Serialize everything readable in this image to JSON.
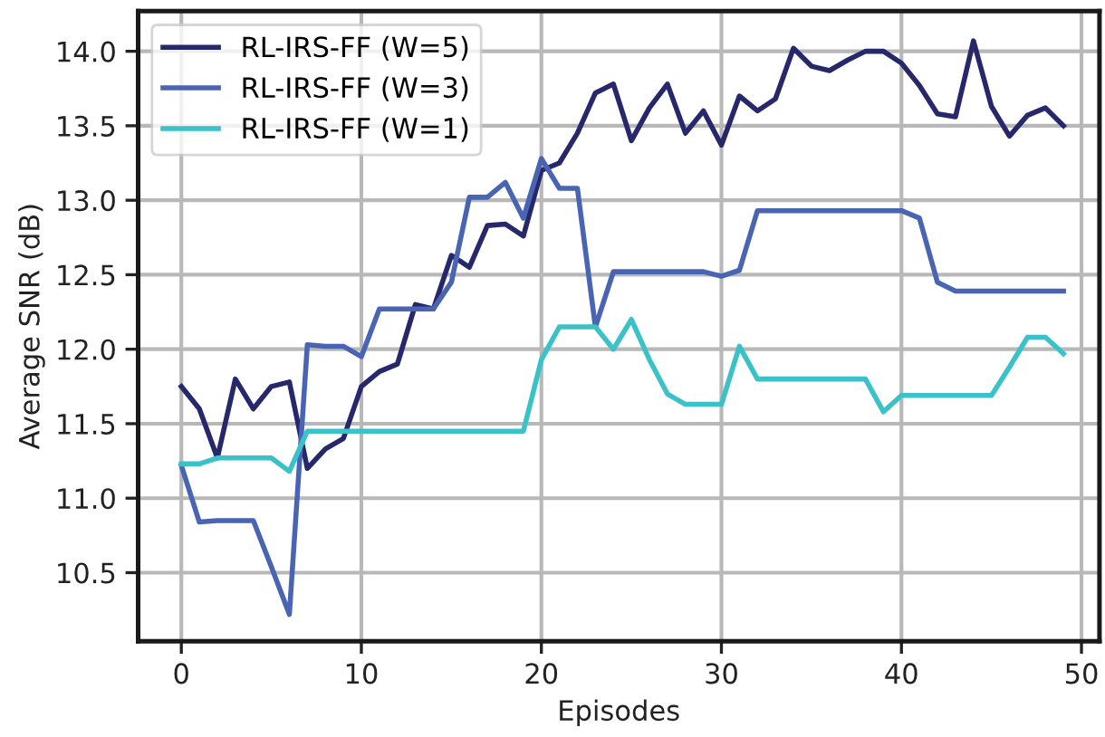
{
  "chart_data": {
    "type": "line",
    "xlabel": "Episodes",
    "ylabel": "Average SNR (dB)",
    "x": [
      0,
      1,
      2,
      3,
      4,
      5,
      6,
      7,
      8,
      9,
      10,
      11,
      12,
      13,
      14,
      15,
      16,
      17,
      18,
      19,
      20,
      21,
      22,
      23,
      24,
      25,
      26,
      27,
      28,
      29,
      30,
      31,
      32,
      33,
      34,
      35,
      36,
      37,
      38,
      39,
      40,
      41,
      42,
      43,
      44,
      45,
      46,
      47,
      48,
      49
    ],
    "series": [
      {
        "name": "RL-IRS-FF (W=5)",
        "color": "#27286b",
        "values": [
          11.75,
          11.6,
          11.27,
          11.8,
          11.6,
          11.75,
          11.78,
          11.2,
          11.33,
          11.4,
          11.75,
          11.85,
          11.9,
          12.3,
          12.27,
          12.63,
          12.55,
          12.83,
          12.84,
          12.76,
          13.2,
          13.25,
          13.45,
          13.72,
          13.78,
          13.4,
          13.62,
          13.78,
          13.45,
          13.6,
          13.37,
          13.7,
          13.6,
          13.68,
          14.02,
          13.9,
          13.87,
          13.94,
          14.0,
          14.0,
          13.92,
          13.77,
          13.58,
          13.56,
          14.07,
          13.63,
          13.43,
          13.57,
          13.62,
          13.5
        ]
      },
      {
        "name": "RL-IRS-FF (W=3)",
        "color": "#4a64b4",
        "values": [
          11.22,
          10.84,
          10.85,
          10.85,
          10.85,
          10.54,
          10.22,
          12.03,
          12.02,
          12.02,
          11.95,
          12.27,
          12.27,
          12.27,
          12.27,
          12.45,
          13.02,
          13.02,
          13.12,
          12.88,
          13.28,
          13.08,
          13.08,
          12.15,
          12.52,
          12.52,
          12.52,
          12.52,
          12.52,
          12.52,
          12.49,
          12.53,
          12.93,
          12.93,
          12.93,
          12.93,
          12.93,
          12.93,
          12.93,
          12.93,
          12.93,
          12.88,
          12.45,
          12.39,
          12.39,
          12.39,
          12.39,
          12.39,
          12.39,
          12.39
        ]
      },
      {
        "name": "RL-IRS-FF (W=1)",
        "color": "#3bc2c8",
        "values": [
          11.23,
          11.23,
          11.27,
          11.27,
          11.27,
          11.27,
          11.18,
          11.45,
          11.45,
          11.45,
          11.45,
          11.45,
          11.45,
          11.45,
          11.45,
          11.45,
          11.45,
          11.45,
          11.45,
          11.45,
          11.93,
          12.15,
          12.15,
          12.15,
          12.0,
          12.2,
          11.93,
          11.7,
          11.63,
          11.63,
          11.63,
          12.02,
          11.8,
          11.8,
          11.8,
          11.8,
          11.8,
          11.8,
          11.8,
          11.58,
          11.69,
          11.69,
          11.69,
          11.69,
          11.69,
          11.69,
          11.88,
          12.08,
          12.08,
          11.97
        ]
      }
    ],
    "xlim": [
      -2.4,
      51.0
    ],
    "ylim": [
      10.04,
      14.27
    ],
    "xticks": [
      0,
      10,
      20,
      30,
      40,
      50
    ],
    "yticks": [
      {
        "value": 10.5,
        "label": "10.5"
      },
      {
        "value": 11.0,
        "label": "11.0"
      },
      {
        "value": 11.5,
        "label": "11.5"
      },
      {
        "value": 12.0,
        "label": "12.0"
      },
      {
        "value": 12.5,
        "label": "12.5"
      },
      {
        "value": 13.0,
        "label": "13.0"
      },
      {
        "value": 13.5,
        "label": "13.5"
      },
      {
        "value": 14.0,
        "label": "14.0"
      }
    ],
    "grid": true,
    "legend": "top left",
    "marker": "none",
    "line_style": "solid"
  }
}
